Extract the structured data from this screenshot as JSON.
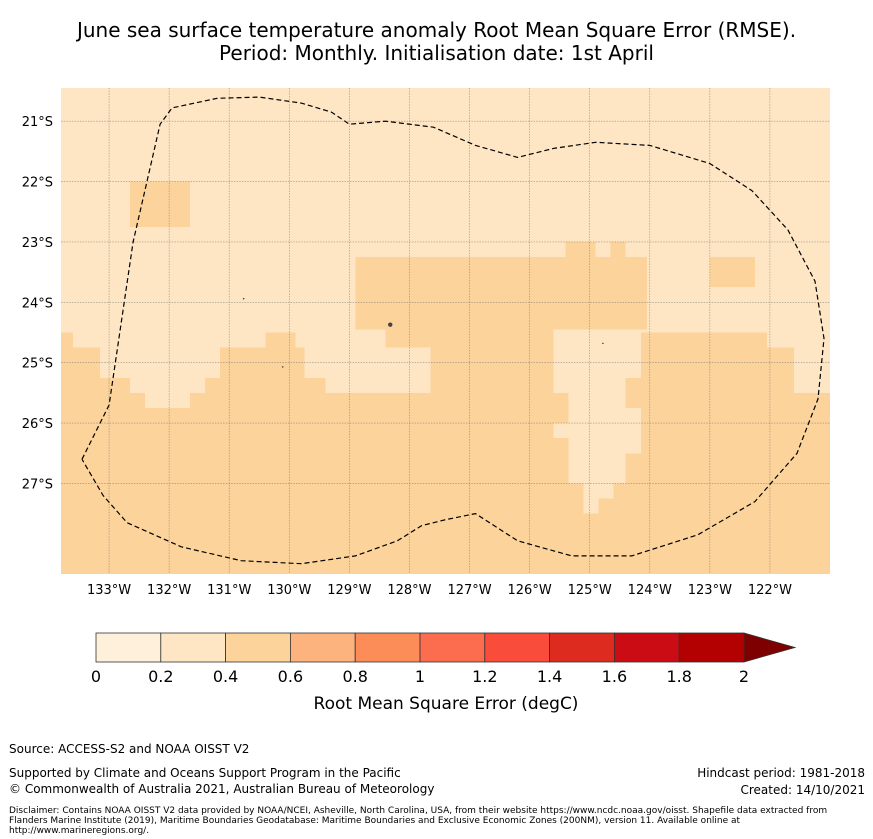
{
  "chart_data": {
    "type": "heatmap",
    "title_lines": [
      "June sea surface temperature anomaly Root Mean Square Error (RMSE).",
      "Period: Monthly. Initialisation date: 1st April"
    ],
    "map": {
      "lon_range": [
        -133.8,
        -121.0
      ],
      "lat_range": [
        -28.5,
        -20.45
      ],
      "lon_ticks": [
        {
          "value": -133,
          "label": "133°W"
        },
        {
          "value": -132,
          "label": "132°W"
        },
        {
          "value": -131,
          "label": "131°W"
        },
        {
          "value": -130,
          "label": "130°W"
        },
        {
          "value": -129,
          "label": "129°W"
        },
        {
          "value": -128,
          "label": "128°W"
        },
        {
          "value": -127,
          "label": "127°W"
        },
        {
          "value": -126,
          "label": "126°W"
        },
        {
          "value": -125,
          "label": "125°W"
        },
        {
          "value": -124,
          "label": "124°W"
        },
        {
          "value": -123,
          "label": "123°W"
        },
        {
          "value": -122,
          "label": "122°W"
        }
      ],
      "lat_ticks": [
        {
          "value": -21,
          "label": "21°S"
        },
        {
          "value": -22,
          "label": "22°S"
        },
        {
          "value": -23,
          "label": "23°S"
        },
        {
          "value": -24,
          "label": "24°S"
        },
        {
          "value": -25,
          "label": "25°S"
        },
        {
          "value": -26,
          "label": "26°S"
        },
        {
          "value": -27,
          "label": "27°S"
        }
      ],
      "grid": true,
      "background_rmse_bin": "0.2-0.4",
      "regions": [
        {
          "bin": "0.4-0.6",
          "lon": [
            -132.65,
            -131.65
          ],
          "lat": [
            -22.75,
            -22.0
          ]
        },
        {
          "bin": "0.4-0.6",
          "lon": [
            -128.9,
            -124.05
          ],
          "lat": [
            -24.45,
            -23.25
          ]
        },
        {
          "bin": "0.4-0.6",
          "lon": [
            -125.4,
            -124.9
          ],
          "lat": [
            -23.25,
            -23.0
          ]
        },
        {
          "bin": "0.4-0.6",
          "lon": [
            -124.65,
            -124.4
          ],
          "lat": [
            -23.25,
            -23.0
          ]
        },
        {
          "bin": "0.4-0.6",
          "lon": [
            -123.0,
            -122.25
          ],
          "lat": [
            -23.75,
            -23.25
          ]
        },
        {
          "bin": "0.4-0.6",
          "lon": [
            -133.8,
            -121.0
          ],
          "lat": [
            -28.5,
            -25.25
          ]
        },
        {
          "bin": "0.4-0.6",
          "lon": [
            -133.8,
            -133.6
          ],
          "lat": [
            -24.75,
            -24.5
          ]
        },
        {
          "bin": "0.4-0.6",
          "lon": [
            -133.8,
            -133.15
          ],
          "lat": [
            -25.25,
            -24.75
          ]
        },
        {
          "bin": "0.4-0.6",
          "lon": [
            -131.15,
            -129.75
          ],
          "lat": [
            -25.25,
            -24.75
          ]
        },
        {
          "bin": "0.4-0.6",
          "lon": [
            -130.4,
            -129.9
          ],
          "lat": [
            -24.75,
            -24.5
          ]
        },
        {
          "bin": "0.4-0.6",
          "lon": [
            -128.4,
            -127.65
          ],
          "lat": [
            -24.75,
            -24.45
          ]
        },
        {
          "bin": "0.4-0.6",
          "lon": [
            -127.65,
            -125.6
          ],
          "lat": [
            -25.25,
            -24.45
          ]
        },
        {
          "bin": "0.4-0.6",
          "lon": [
            -124.15,
            -122.05
          ],
          "lat": [
            -24.75,
            -24.5
          ]
        },
        {
          "bin": "0.4-0.6",
          "lon": [
            -124.15,
            -121.6
          ],
          "lat": [
            -25.25,
            -24.75
          ]
        },
        {
          "bin": "0.2-0.4",
          "lon": [
            -132.65,
            -131.4
          ],
          "lat": [
            -25.5,
            -25.25
          ]
        },
        {
          "bin": "0.2-0.4",
          "lon": [
            -132.15,
            -131.65
          ],
          "lat": [
            -25.75,
            -25.5
          ]
        },
        {
          "bin": "0.2-0.4",
          "lon": [
            -132.4,
            -132.15
          ],
          "lat": [
            -25.5,
            -25.5
          ]
        },
        {
          "bin": "0.2-0.4",
          "lon": [
            -129.4,
            -127.65
          ],
          "lat": [
            -25.5,
            -25.25
          ]
        },
        {
          "bin": "0.2-0.4",
          "lon": [
            -125.6,
            -124.4
          ],
          "lat": [
            -25.25,
            -25.25
          ]
        },
        {
          "bin": "0.2-0.4",
          "lon": [
            -125.35,
            -124.4
          ],
          "lat": [
            -25.75,
            -25.25
          ]
        },
        {
          "bin": "0.2-0.4",
          "lon": [
            -125.35,
            -124.15
          ],
          "lat": [
            -26.5,
            -25.75
          ]
        },
        {
          "bin": "0.2-0.4",
          "lon": [
            -125.6,
            -124.15
          ],
          "lat": [
            -26.25,
            -26.0
          ]
        },
        {
          "bin": "0.2-0.4",
          "lon": [
            -125.35,
            -124.4
          ],
          "lat": [
            -27.0,
            -26.5
          ]
        },
        {
          "bin": "0.2-0.4",
          "lon": [
            -125.1,
            -124.6
          ],
          "lat": [
            -27.25,
            -27.0
          ]
        },
        {
          "bin": "0.2-0.4",
          "lon": [
            -125.1,
            -124.85
          ],
          "lat": [
            -27.5,
            -27.25
          ]
        },
        {
          "bin": "0.2-0.4",
          "lon": [
            -121.6,
            -121.0
          ],
          "lat": [
            -25.25,
            -25.25
          ]
        }
      ],
      "boundary": [
        [
          -133.45,
          -26.6
        ],
        [
          -133.0,
          -25.7
        ],
        [
          -132.6,
          -23.0
        ],
        [
          -132.15,
          -21.05
        ],
        [
          -131.95,
          -20.78
        ],
        [
          -131.2,
          -20.62
        ],
        [
          -130.5,
          -20.6
        ],
        [
          -129.8,
          -20.7
        ],
        [
          -129.3,
          -20.85
        ],
        [
          -129.0,
          -21.05
        ],
        [
          -128.4,
          -21.0
        ],
        [
          -127.6,
          -21.1
        ],
        [
          -126.9,
          -21.4
        ],
        [
          -126.2,
          -21.6
        ],
        [
          -125.6,
          -21.45
        ],
        [
          -124.9,
          -21.35
        ],
        [
          -124.0,
          -21.4
        ],
        [
          -123.0,
          -21.7
        ],
        [
          -122.3,
          -22.15
        ],
        [
          -121.7,
          -22.8
        ],
        [
          -121.25,
          -23.65
        ],
        [
          -121.1,
          -24.6
        ],
        [
          -121.2,
          -25.6
        ],
        [
          -121.55,
          -26.5
        ],
        [
          -122.25,
          -27.3
        ],
        [
          -123.2,
          -27.85
        ],
        [
          -124.3,
          -28.2
        ],
        [
          -125.3,
          -28.2
        ],
        [
          -126.2,
          -27.95
        ],
        [
          -126.9,
          -27.5
        ],
        [
          -127.4,
          -27.6
        ],
        [
          -127.8,
          -27.7
        ],
        [
          -128.2,
          -27.95
        ],
        [
          -128.9,
          -28.2
        ],
        [
          -129.8,
          -28.33
        ],
        [
          -130.8,
          -28.28
        ],
        [
          -131.8,
          -28.05
        ],
        [
          -132.7,
          -27.65
        ],
        [
          -133.1,
          -27.2
        ],
        [
          -133.45,
          -26.6
        ]
      ],
      "islands": [
        {
          "lon": -128.32,
          "lat": -24.37,
          "size": 2.2
        },
        {
          "lon": -130.76,
          "lat": -23.94,
          "size": 0.8
        },
        {
          "lon": -130.11,
          "lat": -25.07,
          "size": 0.8
        },
        {
          "lon": -124.78,
          "lat": -24.68,
          "size": 0.8
        }
      ]
    },
    "colorbar": {
      "label": "Root Mean Square Error (degC)",
      "bins": [
        {
          "from": 0.0,
          "to": 0.2,
          "color": "#fff0dc"
        },
        {
          "from": 0.2,
          "to": 0.4,
          "color": "#fee6c4"
        },
        {
          "from": 0.4,
          "to": 0.6,
          "color": "#fcd39b"
        },
        {
          "from": 0.6,
          "to": 0.8,
          "color": "#fcb37e"
        },
        {
          "from": 0.8,
          "to": 1.0,
          "color": "#fc8d58"
        },
        {
          "from": 1.0,
          "to": 1.2,
          "color": "#fc6c4f"
        },
        {
          "from": 1.2,
          "to": 1.4,
          "color": "#f94c3b"
        },
        {
          "from": 1.4,
          "to": 1.6,
          "color": "#dd2b20"
        },
        {
          "from": 1.6,
          "to": 1.8,
          "color": "#cc0c14"
        },
        {
          "from": 1.8,
          "to": 2.0,
          "color": "#b30000"
        }
      ],
      "extend_color": "#7f0000",
      "tick_labels": [
        "0",
        "0.2",
        "0.4",
        "0.6",
        "0.8",
        "1",
        "1.2",
        "1.4",
        "1.6",
        "1.8",
        "2"
      ]
    }
  },
  "footer": {
    "source": "Source: ACCESS-S2 and NOAA OISST V2",
    "supported": "Supported by Climate and Oceans Support Program in the Pacific",
    "copyright": "© Commonwealth of Australia 2021, Australian Bureau of Meteorology",
    "hindcast": "Hindcast period: 1981-2018",
    "created": "Created: 14/10/2021",
    "disclaimer": "Disclaimer: Contains NOAA OISST V2 data provided by NOAA/NCEI, Asheville, North Carolina, USA, from their website https://www.ncdc.noaa.gov/oisst. Shapefile data extracted from Flanders Marine Institute (2019), Maritime Boundaries Geodatabase: Maritime Boundaries and Exclusive Economic Zones (200NM), version 11. Available online at http://www.marineregions.org/."
  }
}
